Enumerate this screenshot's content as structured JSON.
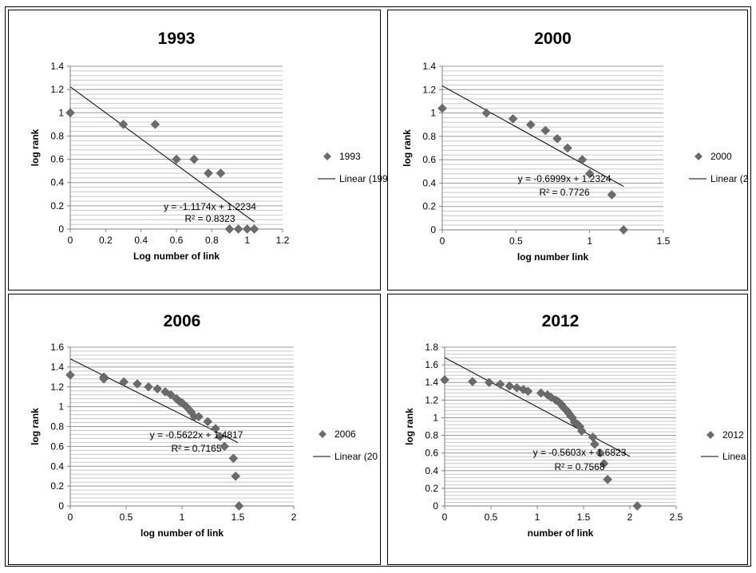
{
  "chart_data": [
    {
      "type": "scatter",
      "title": "1993",
      "xlabel": "Log number of link",
      "ylabel": "log rank",
      "xlim": [
        0,
        1.2
      ],
      "ylim": [
        0,
        1.4
      ],
      "xticks": [
        "0",
        "0.2",
        "0.4",
        "0.6",
        "0.8",
        "1",
        "1.2"
      ],
      "yticks": [
        "0",
        "0.2",
        "0.4",
        "0.6",
        "0.8",
        "1",
        "1.2",
        "1.4"
      ],
      "grid": "horizontal",
      "legend_position": "right",
      "series": [
        {
          "name": "1993",
          "marker": "diamond",
          "x": [
            0,
            0.3,
            0.48,
            0.6,
            0.7,
            0.78,
            0.85,
            0.9,
            0.95,
            1.0,
            1.04
          ],
          "y": [
            1.0,
            0.9,
            0.9,
            0.6,
            0.6,
            0.48,
            0.48,
            0.0,
            0.0,
            0.0,
            0.0
          ]
        }
      ],
      "trendline": {
        "label": "Linear (199",
        "slope": -1.1174,
        "intercept": 1.2234,
        "x_range": [
          0,
          1.04
        ]
      },
      "annotation": {
        "equation": "y = -1.1174x + 1.2234",
        "r_squared": "R² = 0.8323"
      }
    },
    {
      "type": "scatter",
      "title": "2000",
      "xlabel": "log number link",
      "ylabel": "log rank",
      "xlim": [
        0,
        1.5
      ],
      "ylim": [
        0,
        1.4
      ],
      "xticks": [
        "0",
        "0.5",
        "1",
        "1.5"
      ],
      "yticks": [
        "0",
        "0.2",
        "0.4",
        "0.6",
        "0.8",
        "1",
        "1.2",
        "1.4"
      ],
      "grid": "horizontal",
      "legend_position": "right",
      "series": [
        {
          "name": "2000",
          "marker": "diamond",
          "x": [
            0,
            0.3,
            0.48,
            0.6,
            0.7,
            0.78,
            0.85,
            0.95,
            1.0,
            1.15,
            1.23
          ],
          "y": [
            1.04,
            1.0,
            0.95,
            0.9,
            0.85,
            0.78,
            0.7,
            0.6,
            0.48,
            0.3,
            0.0
          ]
        }
      ],
      "trendline": {
        "label": "Linear (2",
        "slope": -0.6999,
        "intercept": 1.2324,
        "x_range": [
          0,
          1.23
        ]
      },
      "annotation": {
        "equation": "y = -0.6999x + 1.2324",
        "r_squared": "R² = 0.7726"
      }
    },
    {
      "type": "scatter",
      "title": "2006",
      "xlabel": "log number of link",
      "ylabel": "log rank",
      "xlim": [
        0,
        2
      ],
      "ylim": [
        0,
        1.6
      ],
      "xticks": [
        "0",
        "0.5",
        "1",
        "1.5",
        "2"
      ],
      "yticks": [
        "0",
        "0.2",
        "0.4",
        "0.6",
        "0.8",
        "1",
        "1.2",
        "1.4",
        "1.6"
      ],
      "grid": "horizontal",
      "legend_position": "right",
      "series": [
        {
          "name": "2006",
          "marker": "diamond",
          "x": [
            0,
            0.3,
            0.3,
            0.48,
            0.6,
            0.7,
            0.78,
            0.85,
            0.9,
            0.95,
            0.98,
            1.0,
            1.04,
            1.08,
            1.11,
            1.15,
            1.23,
            1.3,
            1.34,
            1.38,
            1.46,
            1.48,
            1.51
          ],
          "y": [
            1.32,
            1.3,
            1.28,
            1.25,
            1.23,
            1.2,
            1.18,
            1.15,
            1.12,
            1.08,
            1.05,
            1.04,
            1.0,
            0.95,
            0.9,
            0.9,
            0.85,
            0.78,
            0.7,
            0.6,
            0.48,
            0.3,
            0.0
          ]
        }
      ],
      "trendline": {
        "label": "Linear (20",
        "slope": -0.5622,
        "intercept": 1.4817,
        "x_range": [
          0,
          1.5
        ]
      },
      "annotation": {
        "equation": "y = -0.5622x + 1.4817",
        "r_squared": "R² = 0.7165"
      }
    },
    {
      "type": "scatter",
      "title": "2012",
      "xlabel": "number of link",
      "ylabel": "log rank",
      "xlim": [
        0,
        2.5
      ],
      "ylim": [
        0,
        1.8
      ],
      "xticks": [
        "0",
        "0.5",
        "1",
        "1.5",
        "2",
        "2.5"
      ],
      "yticks": [
        "0",
        "0.2",
        "0.4",
        "0.6",
        "0.8",
        "1",
        "1.2",
        "1.4",
        "1.6",
        "1.8"
      ],
      "grid": "horizontal",
      "legend_position": "right",
      "series": [
        {
          "name": "2012",
          "marker": "diamond",
          "x": [
            0,
            0.3,
            0.48,
            0.6,
            0.7,
            0.78,
            0.85,
            0.9,
            1.04,
            1.11,
            1.15,
            1.2,
            1.23,
            1.26,
            1.28,
            1.3,
            1.32,
            1.34,
            1.36,
            1.38,
            1.4,
            1.43,
            1.46,
            1.48,
            1.6,
            1.62,
            1.68,
            1.72,
            1.76,
            2.08
          ],
          "y": [
            1.43,
            1.41,
            1.4,
            1.38,
            1.36,
            1.34,
            1.32,
            1.3,
            1.28,
            1.26,
            1.23,
            1.2,
            1.18,
            1.15,
            1.12,
            1.1,
            1.08,
            1.05,
            1.02,
            1.0,
            0.95,
            0.93,
            0.9,
            0.85,
            0.78,
            0.7,
            0.6,
            0.48,
            0.3,
            0.0
          ]
        }
      ],
      "trendline": {
        "label": "Linea",
        "slope": -0.5603,
        "intercept": 1.6823,
        "x_range": [
          0,
          2.0
        ]
      },
      "annotation": {
        "equation": "y = -0.5603x + 1.6823",
        "r_squared": "R² = 0.7568"
      }
    }
  ]
}
